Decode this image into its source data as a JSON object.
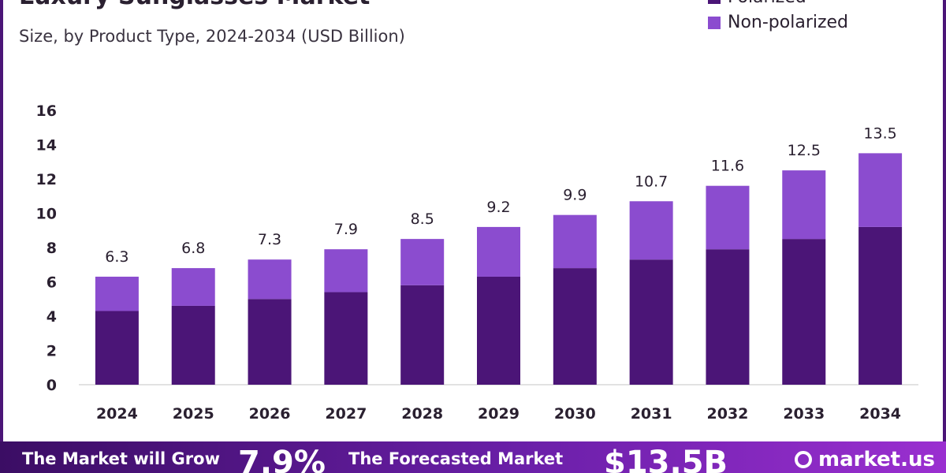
{
  "title": "Luxury Sunglasses Market",
  "subtitle": "Size, by Product Type, 2024-2034 (USD Billion)",
  "colors": {
    "polarized": "#4b1577",
    "non_polarized": "#8b4ccf",
    "axis": "#d8d8d8",
    "text": "#2a2030"
  },
  "legend": [
    {
      "name": "Polarized",
      "color": "#4b1577"
    },
    {
      "name": "Non-polarized",
      "color": "#8b4ccf"
    }
  ],
  "chart_data": {
    "type": "bar",
    "stacked": true,
    "title": "Luxury Sunglasses Market",
    "subtitle": "Size, by Product Type, 2024-2034 (USD Billion)",
    "categories": [
      "2024",
      "2025",
      "2026",
      "2027",
      "2028",
      "2029",
      "2030",
      "2031",
      "2032",
      "2033",
      "2034"
    ],
    "series": [
      {
        "name": "Polarized",
        "values": [
          4.3,
          4.6,
          5.0,
          5.4,
          5.8,
          6.3,
          6.8,
          7.3,
          7.9,
          8.5,
          9.2
        ]
      },
      {
        "name": "Non-polarized",
        "values": [
          2.0,
          2.2,
          2.3,
          2.5,
          2.7,
          2.9,
          3.1,
          3.4,
          3.7,
          4.0,
          4.3
        ]
      }
    ],
    "totals": [
      6.3,
      6.8,
      7.3,
      7.9,
      8.5,
      9.2,
      9.9,
      10.7,
      11.6,
      12.5,
      13.5
    ],
    "total_labels": [
      "6.3",
      "6.8",
      "7.3",
      "7.9",
      "8.5",
      "9.2",
      "9.9",
      "10.7",
      "11.6",
      "12.5",
      "13.5"
    ],
    "ylim": [
      0,
      16
    ],
    "yticks": [
      0,
      2,
      4,
      6,
      8,
      10,
      12,
      14,
      16
    ],
    "xlabel": "",
    "ylabel": "",
    "grid": false,
    "legend_position": "top-right"
  },
  "footer": {
    "grow_text": "The Market will Grow",
    "rate": "7.9%",
    "forecast_text": "The Forecasted Market",
    "value": "$13.5B",
    "brand": "market.us"
  }
}
